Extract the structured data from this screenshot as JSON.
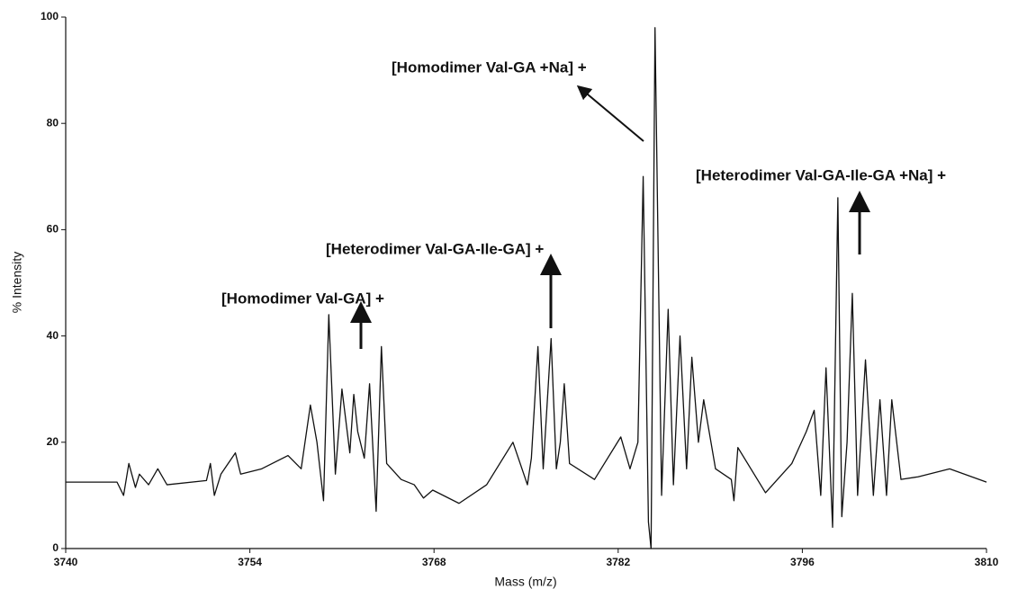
{
  "chart_data": {
    "type": "line",
    "x_label": "Mass (m/z)",
    "y_label": "% Intensity",
    "annotations": [
      "[Homodimer Val-GA +Na] +",
      "[Heterodimer Val-GA-Ile-GA +Na] +",
      "[Heterodimer Val-GA-Ile-GA] +",
      "[Homodimer Val-GA] +"
    ],
    "xlim": [
      3740,
      3810
    ],
    "xticks": [
      3740,
      3754,
      3768,
      3782,
      3796,
      3810
    ],
    "ylim": [
      0,
      100
    ],
    "yticks": [
      0,
      20,
      40,
      60,
      80,
      100
    ],
    "grid": false,
    "x": [
      3740,
      3741.8,
      3743.9,
      3744.4,
      3744.8,
      3745.3,
      3745.6,
      3746.3,
      3747.0,
      3747.7,
      3750.7,
      3751.0,
      3751.3,
      3751.8,
      3752.9,
      3753.3,
      3754.9,
      3756.9,
      3757.9,
      3758.6,
      3759.1,
      3759.6,
      3760.0,
      3760.5,
      3761.0,
      3761.6,
      3761.9,
      3762.2,
      3762.7,
      3763.1,
      3763.6,
      3764.0,
      3764.4,
      3765.5,
      3766.5,
      3767.2,
      3767.9,
      3769.9,
      3772.0,
      3774.0,
      3775.1,
      3775.4,
      3775.9,
      3776.3,
      3776.9,
      3777.3,
      3777.6,
      3777.9,
      3778.3,
      3780.2,
      3782.2,
      3782.9,
      3783.5,
      3783.9,
      3784.3,
      3784.5,
      3784.8,
      3785.3,
      3785.8,
      3786.2,
      3786.7,
      3787.2,
      3787.6,
      3788.1,
      3788.5,
      3789.4,
      3790.6,
      3790.8,
      3791.1,
      3793.2,
      3795.2,
      3796.3,
      3796.9,
      3797.4,
      3797.8,
      3798.3,
      3798.7,
      3799.0,
      3799.4,
      3799.8,
      3800.2,
      3800.8,
      3801.4,
      3801.9,
      3802.4,
      3802.8,
      3803.5,
      3804.8,
      3807.2,
      3810
    ],
    "series": [
      {
        "color": "#111111",
        "values": [
          12.5,
          12.5,
          12.5,
          10,
          16,
          11.5,
          14,
          12,
          15,
          12,
          12.8,
          16,
          10,
          14,
          18,
          14,
          15,
          17.5,
          15,
          27,
          20,
          9,
          44,
          14,
          30,
          18,
          29,
          22,
          17,
          31,
          7,
          38,
          16,
          13,
          12,
          9.5,
          11,
          8.5,
          12,
          20,
          12,
          17,
          38,
          15,
          39.5,
          15,
          20,
          31,
          16,
          13,
          21,
          15,
          20,
          70,
          5,
          0,
          98,
          10,
          45,
          12,
          40,
          15,
          36,
          20,
          28,
          15,
          13,
          9,
          19,
          10.5,
          16,
          22,
          26,
          10,
          34,
          4,
          66,
          6,
          20,
          48,
          10,
          35.5,
          10,
          28,
          10,
          28,
          13,
          13.5,
          15,
          12.5
        ]
      }
    ]
  }
}
